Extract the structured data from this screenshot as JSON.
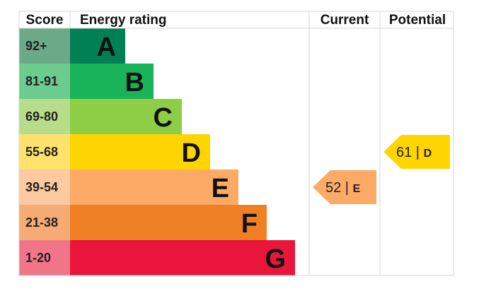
{
  "chart_data": {
    "type": "bar",
    "headers": {
      "score": "Score",
      "rating": "Energy rating",
      "current": "Current",
      "potential": "Potential"
    },
    "bands": [
      {
        "letter": "A",
        "range": "92+",
        "color": "#008054",
        "score_color": "#6BA989"
      },
      {
        "letter": "B",
        "range": "81-91",
        "color": "#19B459",
        "score_color": "#6CCB8E"
      },
      {
        "letter": "C",
        "range": "69-80",
        "color": "#8DCE46",
        "score_color": "#B7DD8A"
      },
      {
        "letter": "D",
        "range": "55-68",
        "color": "#FFD500",
        "score_color": "#FFE26B"
      },
      {
        "letter": "E",
        "range": "39-54",
        "color": "#FCAA65",
        "score_color": "#FDC9A0"
      },
      {
        "letter": "F",
        "range": "21-38",
        "color": "#EF8023",
        "score_color": "#F4AC74"
      },
      {
        "letter": "G",
        "range": "1-20",
        "color": "#E9153B",
        "score_color": "#F07589"
      }
    ],
    "current": {
      "value": 52,
      "band": "E",
      "color": "#FCAA65"
    },
    "potential": {
      "value": 61,
      "band": "D",
      "color": "#FFD500"
    }
  }
}
